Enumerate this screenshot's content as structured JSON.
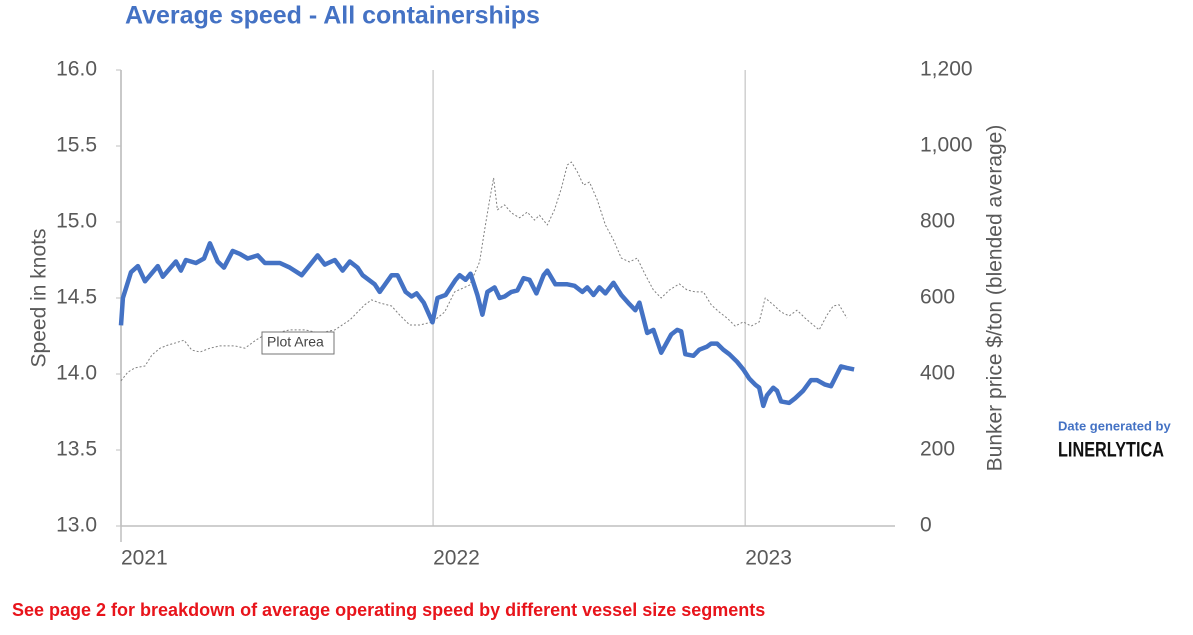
{
  "chart_data": {
    "type": "line",
    "title": "Average speed - All containerships",
    "y_label": "Speed in knots",
    "y2_label": "Bunker price $/ton (blended average)",
    "annotation": "Plot Area",
    "credit_label": "Date generated by",
    "credit_brand": "LINERLYTICA",
    "footnote": "See page 2 for breakdown of average operating speed by different vessel size segments",
    "xlim": [
      2021,
      2023.48
    ],
    "xticks": [
      2021,
      2022,
      2023
    ],
    "ylim": [
      13,
      16
    ],
    "yticks": [
      {
        "value": 13,
        "label": "13.0"
      },
      13.5,
      {
        "value": 14,
        "label": "14.0"
      },
      14.5,
      {
        "value": 15,
        "label": "15.0"
      },
      15.5,
      {
        "value": 16,
        "label": "16.0"
      }
    ],
    "y2lim": [
      0,
      1200
    ],
    "y2ticks": [
      0,
      200,
      400,
      600,
      800,
      {
        "value": 1000,
        "label": "1,000"
      },
      {
        "value": 1200,
        "label": "1,200"
      }
    ],
    "grid": true,
    "series": [
      {
        "name": "Average speed",
        "color": "#4472c4",
        "axis": "y",
        "x": [
          2021.0,
          2021.006,
          2021.032,
          2021.054,
          2021.077,
          2021.118,
          2021.134,
          2021.176,
          2021.192,
          2021.208,
          2021.24,
          2021.266,
          2021.285,
          2021.31,
          2021.33,
          2021.358,
          2021.381,
          2021.406,
          2021.438,
          2021.461,
          2021.509,
          2021.541,
          2021.579,
          2021.63,
          2021.653,
          2021.685,
          2021.71,
          2021.733,
          2021.758,
          2021.774,
          2021.813,
          2021.829,
          2021.867,
          2021.886,
          2021.912,
          2021.931,
          2021.947,
          2021.97,
          2021.998,
          2022.014,
          2022.04,
          2022.072,
          2022.085,
          2022.104,
          2022.12,
          2022.142,
          2022.158,
          2022.174,
          2022.197,
          2022.213,
          2022.229,
          2022.251,
          2022.27,
          2022.29,
          2022.309,
          2022.331,
          2022.354,
          2022.366,
          2022.392,
          2022.43,
          2022.453,
          2022.478,
          2022.494,
          2022.514,
          2022.533,
          2022.552,
          2022.578,
          2022.603,
          2022.629,
          2022.648,
          2022.661,
          2022.686,
          2022.706,
          2022.731,
          2022.763,
          2022.782,
          2022.795,
          2022.808,
          2022.834,
          2022.853,
          2022.878,
          2022.891,
          2022.91,
          2022.93,
          2022.949,
          2022.974,
          2022.994,
          2023.013,
          2023.032,
          2023.045,
          2023.058,
          2023.07,
          2023.09,
          2023.102,
          2023.115,
          2023.141,
          2023.16,
          2023.186,
          2023.211,
          2023.23,
          2023.256,
          2023.275,
          2023.307,
          2023.326,
          2023.349
        ],
        "values": [
          14.32,
          14.5,
          14.67,
          14.71,
          14.61,
          14.71,
          14.64,
          14.74,
          14.68,
          14.75,
          14.73,
          14.76,
          14.86,
          14.74,
          14.7,
          14.81,
          14.79,
          14.76,
          14.78,
          14.73,
          14.73,
          14.7,
          14.65,
          14.78,
          14.72,
          14.75,
          14.68,
          14.74,
          14.7,
          14.65,
          14.59,
          14.54,
          14.65,
          14.65,
          14.54,
          14.51,
          14.53,
          14.47,
          14.34,
          14.5,
          14.52,
          14.62,
          14.65,
          14.62,
          14.66,
          14.52,
          14.39,
          14.54,
          14.57,
          14.5,
          14.51,
          14.54,
          14.55,
          14.63,
          14.62,
          14.53,
          14.65,
          14.68,
          14.59,
          14.59,
          14.58,
          14.54,
          14.57,
          14.52,
          14.57,
          14.53,
          14.6,
          14.52,
          14.46,
          14.42,
          14.47,
          14.27,
          14.29,
          14.14,
          14.26,
          14.29,
          14.28,
          14.13,
          14.12,
          14.16,
          14.18,
          14.2,
          14.2,
          14.16,
          14.13,
          14.08,
          14.03,
          13.97,
          13.93,
          13.91,
          13.79,
          13.86,
          13.91,
          13.89,
          13.82,
          13.81,
          13.84,
          13.89,
          13.96,
          13.96,
          13.93,
          13.92,
          14.05,
          14.04,
          14.03
        ]
      },
      {
        "name": "Bunker price",
        "color": "#808080",
        "axis": "y2",
        "x": [
          2021.0,
          2021.022,
          2021.045,
          2021.077,
          2021.099,
          2021.125,
          2021.15,
          2021.176,
          2021.202,
          2021.227,
          2021.253,
          2021.285,
          2021.317,
          2021.365,
          2021.397,
          2021.432,
          2021.464,
          2021.496,
          2021.541,
          2021.589,
          2021.637,
          2021.685,
          2021.733,
          2021.781,
          2021.803,
          2021.829,
          2021.867,
          2021.893,
          2021.925,
          2021.957,
          2021.998,
          2022.037,
          2022.069,
          2022.117,
          2022.149,
          2022.165,
          2022.181,
          2022.194,
          2022.206,
          2022.229,
          2022.251,
          2022.277,
          2022.302,
          2022.325,
          2022.341,
          2022.366,
          2022.389,
          2022.411,
          2022.43,
          2022.443,
          2022.462,
          2022.482,
          2022.501,
          2022.526,
          2022.552,
          2022.578,
          2022.603,
          2022.629,
          2022.654,
          2022.68,
          2022.706,
          2022.731,
          2022.757,
          2022.789,
          2022.814,
          2022.84,
          2022.866,
          2022.891,
          2022.917,
          2022.942,
          2022.968,
          2022.994,
          2023.019,
          2023.045,
          2023.064,
          2023.09,
          2023.115,
          2023.141,
          2023.166,
          2023.192,
          2023.218,
          2023.237,
          2023.262,
          2023.282,
          2023.301,
          2023.326
        ],
        "values": [
          382,
          405,
          416,
          421,
          450,
          468,
          476,
          482,
          489,
          463,
          458,
          468,
          474,
          474,
          468,
          489,
          505,
          508,
          516,
          516,
          508,
          516,
          542,
          582,
          595,
          587,
          579,
          555,
          529,
          529,
          537,
          563,
          616,
          634,
          695,
          779,
          858,
          916,
          832,
          845,
          824,
          811,
          826,
          805,
          818,
          792,
          832,
          889,
          950,
          958,
          932,
          897,
          905,
          858,
          792,
          753,
          705,
          695,
          705,
          661,
          621,
          600,
          621,
          637,
          621,
          616,
          616,
          582,
          563,
          547,
          526,
          537,
          526,
          537,
          600,
          582,
          563,
          553,
          568,
          547,
          529,
          516,
          555,
          579,
          582,
          547
        ]
      }
    ]
  }
}
